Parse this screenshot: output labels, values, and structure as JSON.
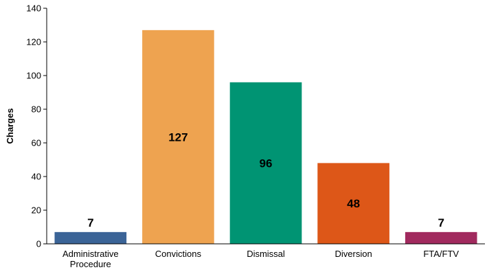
{
  "chart_data": {
    "type": "bar",
    "title": "",
    "xlabel": "",
    "ylabel": "Charges",
    "ylim": [
      0,
      140
    ],
    "yticks": [
      0,
      20,
      40,
      60,
      80,
      100,
      120,
      140
    ],
    "grid": false,
    "legend": "none",
    "categories": [
      [
        "Administrative",
        "Procedure"
      ],
      [
        "Convictions"
      ],
      [
        "Dismissal"
      ],
      [
        "Diversion"
      ],
      [
        "FTA/FTV"
      ]
    ],
    "values": [
      7,
      127,
      96,
      48,
      7
    ],
    "data_labels": [
      "7",
      "127",
      "96",
      "48",
      "7"
    ],
    "colors": [
      "#3b6497",
      "#eea350",
      "#009473",
      "#dd5718",
      "#a12a5e"
    ]
  }
}
